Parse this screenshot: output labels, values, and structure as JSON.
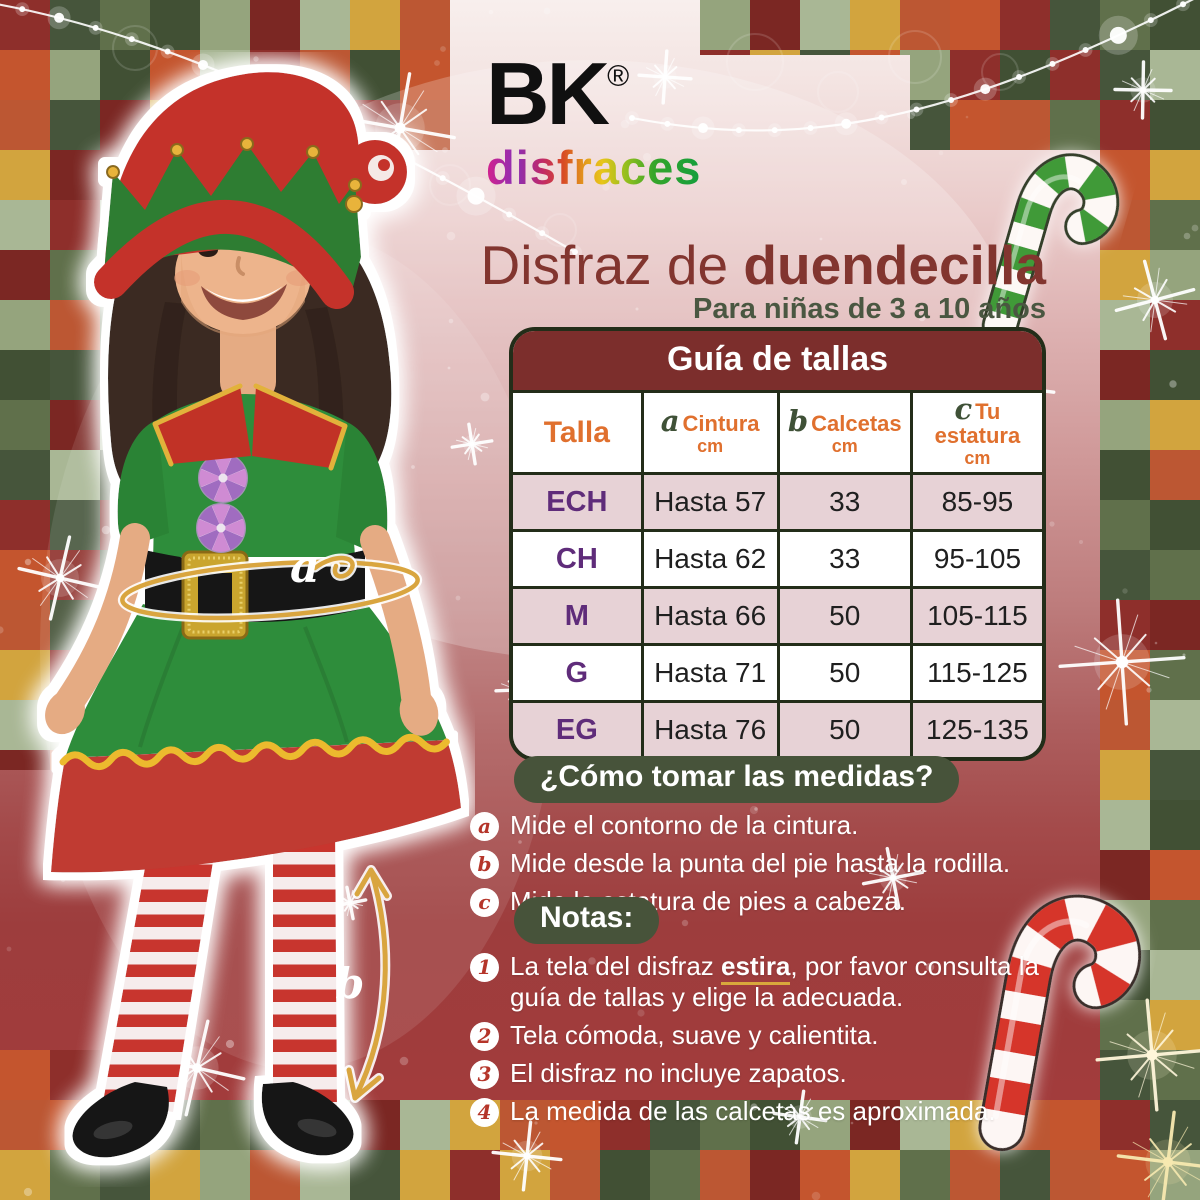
{
  "brand": {
    "name": "BK",
    "registered": "®",
    "sub": "disfraces"
  },
  "title": {
    "regular": "Disfraz de ",
    "bold": "duendecilla"
  },
  "subtitle": "Para niñas de 3 a 10 años",
  "size_guide": {
    "title": "Guía de tallas",
    "columns": [
      {
        "letter": "",
        "label": "Talla",
        "unit": ""
      },
      {
        "letter": "a",
        "label": "Cintura",
        "unit": "cm"
      },
      {
        "letter": "b",
        "label": "Calcetas",
        "unit": "cm"
      },
      {
        "letter": "c",
        "label": "Tu estatura",
        "unit": "cm"
      }
    ],
    "rows": [
      {
        "size": "ECH",
        "cintura": "Hasta 57",
        "calcetas": "33",
        "estatura": "85-95"
      },
      {
        "size": "CH",
        "cintura": "Hasta 62",
        "calcetas": "33",
        "estatura": "95-105"
      },
      {
        "size": "M",
        "cintura": "Hasta 66",
        "calcetas": "50",
        "estatura": "105-115"
      },
      {
        "size": "G",
        "cintura": "Hasta 71",
        "calcetas": "50",
        "estatura": "115-125"
      },
      {
        "size": "EG",
        "cintura": "Hasta 76",
        "calcetas": "50",
        "estatura": "125-135"
      }
    ]
  },
  "how_to": {
    "title": "¿Cómo tomar las medidas?",
    "items": [
      {
        "letter": "a",
        "text": "Mide el contorno de la cintura."
      },
      {
        "letter": "b",
        "text": "Mide desde la punta del pie hasta la rodilla."
      },
      {
        "letter": "c",
        "text": "Mide la estatura de pies a cabeza."
      }
    ]
  },
  "notes": {
    "title": "Notas:",
    "items": [
      {
        "number": "1",
        "pre": "La tela del disfraz ",
        "emphasis": "estira",
        "post": ", por favor consulta la guía de tallas y elige la adecuada."
      },
      {
        "number": "2",
        "pre": "",
        "emphasis": "",
        "post": "Tela cómoda, suave y calientita."
      },
      {
        "number": "3",
        "pre": "",
        "emphasis": "",
        "post": "El disfraz no incluye zapatos."
      },
      {
        "number": "4",
        "pre": "",
        "emphasis": "",
        "post": "La medida de las calcetas es aproximada."
      }
    ]
  },
  "annotations": {
    "waist_label": "a",
    "sock_label": "b"
  },
  "decor_icons": [
    "christmas-lights-icon",
    "candy-cane-green-icon",
    "candy-cane-red-icon",
    "sparkle-icon",
    "elf-girl-photo"
  ],
  "colors": {
    "table_header_maroon": "#7c2e2c",
    "title_maroon": "#82352f",
    "subtitle_green": "#4a5741",
    "column_orange": "#e0702e",
    "size_purple": "#5f2c7a",
    "pill_green": "#47533a",
    "panel_red": "#a23c3c",
    "gold": "#d9a53f",
    "table_row_pink": "#e7d2d6",
    "table_border": "#232d19",
    "candy_green": "#3f9a38",
    "candy_red": "#d6362c",
    "checker_palette": [
      "#8e2f2b",
      "#d2a43e",
      "#95a47d",
      "#46553b",
      "#bc5733",
      "#7b2723",
      "#60704b",
      "#c4552e",
      "#a9b795",
      "#415034"
    ]
  }
}
